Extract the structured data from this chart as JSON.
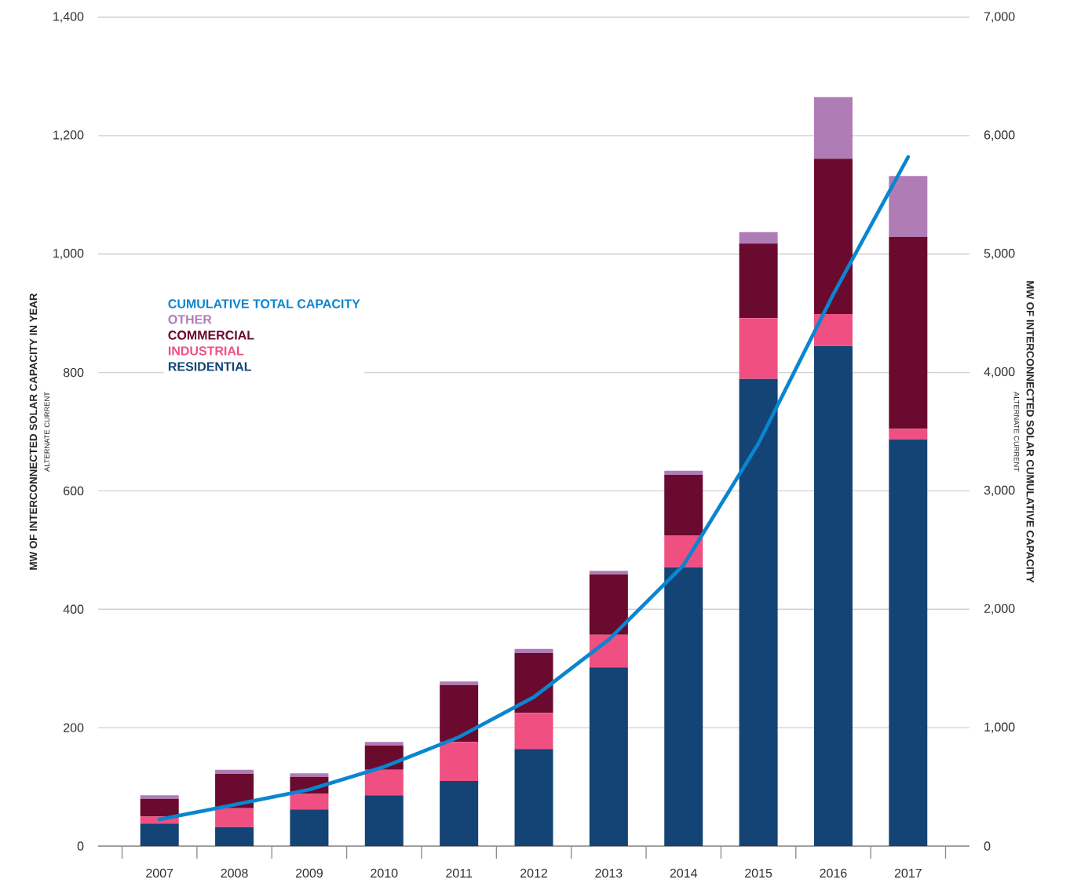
{
  "chart_data": {
    "type": "bar",
    "stacked": true,
    "categories": [
      "2007",
      "2008",
      "2009",
      "2010",
      "2011",
      "2012",
      "2013",
      "2014",
      "2015",
      "2016",
      "2017"
    ],
    "series": [
      {
        "name": "RESIDENTIAL",
        "color": "#144375",
        "values": [
          38,
          32,
          62,
          86,
          110,
          164,
          302,
          471,
          789,
          845,
          687
        ]
      },
      {
        "name": "INDUSTRIAL",
        "color": "#ef5081",
        "values": [
          12,
          32,
          26,
          43,
          66,
          61,
          55,
          54,
          103,
          54,
          18
        ]
      },
      {
        "name": "COMMERCIAL",
        "color": "#6a0a2e",
        "values": [
          30,
          58,
          29,
          41,
          96,
          101,
          102,
          102,
          126,
          262,
          324
        ]
      },
      {
        "name": "OTHER",
        "color": "#b07cb6",
        "values": [
          6,
          7,
          6,
          6,
          6,
          7,
          6,
          7,
          19,
          104,
          103
        ]
      },
      {
        "name": "CUMULATIVE TOTAL CAPACITY",
        "color": "#0a85d0",
        "type": "line",
        "axis": "y2",
        "values": [
          225,
          350,
          477,
          670,
          921,
          1259,
          1743,
          2373,
          3401,
          4660,
          5820
        ]
      }
    ],
    "ylabel": "MW OF INTERCONNECTED SOLAR CAPACITY IN YEAR",
    "y2label": "MW OF INTERCONNECTED SOLAR CUMULATIVE CAPACITY",
    "annotations": [
      "ALTERNATE CURRENT",
      "ALTERNATE CURRENT"
    ],
    "ylim": [
      0,
      1400
    ],
    "yticks": [
      0,
      200,
      400,
      600,
      800,
      {
        "value": 1000,
        "label": "1,000"
      },
      {
        "value": 1200,
        "label": "1,200"
      },
      {
        "value": 1400,
        "label": "1,400"
      }
    ],
    "y2lim": [
      0,
      7000
    ],
    "y2ticks": [
      0,
      {
        "value": 1000,
        "label": "1,000"
      },
      {
        "value": 2000,
        "label": "2,000"
      },
      {
        "value": 3000,
        "label": "3,000"
      },
      {
        "value": 4000,
        "label": "4,000"
      },
      {
        "value": 5000,
        "label": "5,000"
      },
      {
        "value": 6000,
        "label": "6,000"
      },
      {
        "value": 7000,
        "label": "7,000"
      }
    ],
    "grid": "y",
    "legend": "top left"
  }
}
